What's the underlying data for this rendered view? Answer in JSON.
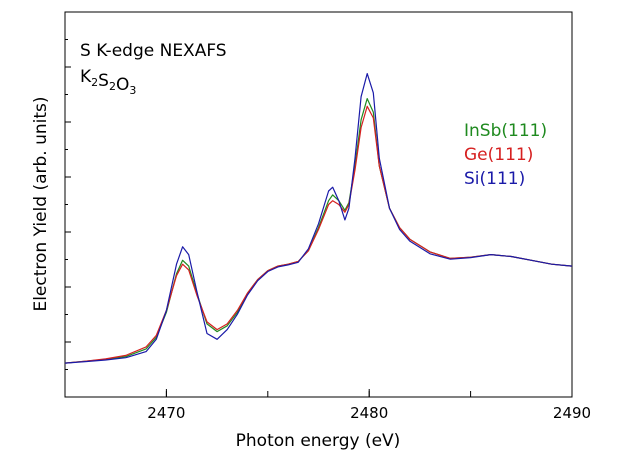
{
  "chart_data": {
    "type": "line",
    "title": "",
    "xlabel": "Photon energy (eV)",
    "ylabel": "Electron Yield (arb. units)",
    "xlim": [
      2465,
      2490
    ],
    "ylim": [
      0,
      1.0
    ],
    "y_ticks_labeled": false,
    "x_ticks": [
      2470,
      2480,
      2490
    ],
    "grid": false,
    "legend_position": "right",
    "annotation": {
      "line1": "S K-edge NEXAFS",
      "formula_parts": [
        {
          "text": "K",
          "sub": "2"
        },
        {
          "text": "S",
          "sub": "2"
        },
        {
          "text": "O",
          "sub": "3"
        }
      ]
    },
    "series": [
      {
        "name": "InSb(111)",
        "color": "#1f8a1f",
        "points": [
          [
            2465,
            0.088
          ],
          [
            2466,
            0.093
          ],
          [
            2467,
            0.098
          ],
          [
            2468,
            0.105
          ],
          [
            2469,
            0.125
          ],
          [
            2469.5,
            0.155
          ],
          [
            2470,
            0.22
          ],
          [
            2470.5,
            0.32
          ],
          [
            2470.8,
            0.355
          ],
          [
            2471.1,
            0.34
          ],
          [
            2471.5,
            0.27
          ],
          [
            2472,
            0.19
          ],
          [
            2472.5,
            0.17
          ],
          [
            2473,
            0.185
          ],
          [
            2473.5,
            0.22
          ],
          [
            2474,
            0.27
          ],
          [
            2474.5,
            0.305
          ],
          [
            2475,
            0.328
          ],
          [
            2475.5,
            0.34
          ],
          [
            2476,
            0.345
          ],
          [
            2476.5,
            0.352
          ],
          [
            2477,
            0.38
          ],
          [
            2477.5,
            0.44
          ],
          [
            2478,
            0.51
          ],
          [
            2478.2,
            0.525
          ],
          [
            2478.5,
            0.51
          ],
          [
            2478.8,
            0.485
          ],
          [
            2479,
            0.505
          ],
          [
            2479.3,
            0.6
          ],
          [
            2479.6,
            0.72
          ],
          [
            2479.9,
            0.775
          ],
          [
            2480.2,
            0.74
          ],
          [
            2480.5,
            0.6
          ],
          [
            2481,
            0.49
          ],
          [
            2481.5,
            0.44
          ],
          [
            2482,
            0.41
          ],
          [
            2483,
            0.377
          ],
          [
            2484,
            0.36
          ],
          [
            2485,
            0.363
          ],
          [
            2486,
            0.37
          ],
          [
            2487,
            0.365
          ],
          [
            2488,
            0.355
          ],
          [
            2489,
            0.345
          ],
          [
            2490,
            0.34
          ]
        ]
      },
      {
        "name": "Ge(111)",
        "color": "#d62020",
        "points": [
          [
            2465,
            0.088
          ],
          [
            2466,
            0.093
          ],
          [
            2467,
            0.099
          ],
          [
            2468,
            0.108
          ],
          [
            2469,
            0.13
          ],
          [
            2469.5,
            0.16
          ],
          [
            2470,
            0.225
          ],
          [
            2470.5,
            0.315
          ],
          [
            2470.8,
            0.345
          ],
          [
            2471.1,
            0.33
          ],
          [
            2471.5,
            0.265
          ],
          [
            2472,
            0.195
          ],
          [
            2472.5,
            0.175
          ],
          [
            2473,
            0.19
          ],
          [
            2473.5,
            0.225
          ],
          [
            2474,
            0.27
          ],
          [
            2474.5,
            0.305
          ],
          [
            2475,
            0.328
          ],
          [
            2475.5,
            0.34
          ],
          [
            2476,
            0.345
          ],
          [
            2476.5,
            0.352
          ],
          [
            2477,
            0.38
          ],
          [
            2477.5,
            0.435
          ],
          [
            2478,
            0.5
          ],
          [
            2478.2,
            0.51
          ],
          [
            2478.5,
            0.5
          ],
          [
            2478.8,
            0.48
          ],
          [
            2479,
            0.5
          ],
          [
            2479.3,
            0.59
          ],
          [
            2479.6,
            0.7
          ],
          [
            2479.9,
            0.755
          ],
          [
            2480.2,
            0.725
          ],
          [
            2480.5,
            0.6
          ],
          [
            2481,
            0.49
          ],
          [
            2481.5,
            0.44
          ],
          [
            2482,
            0.41
          ],
          [
            2483,
            0.377
          ],
          [
            2484,
            0.36
          ],
          [
            2485,
            0.363
          ],
          [
            2486,
            0.37
          ],
          [
            2487,
            0.365
          ],
          [
            2488,
            0.355
          ],
          [
            2489,
            0.345
          ],
          [
            2490,
            0.34
          ]
        ]
      },
      {
        "name": "Si(111)",
        "color": "#1a1aa8",
        "points": [
          [
            2465,
            0.088
          ],
          [
            2466,
            0.092
          ],
          [
            2467,
            0.096
          ],
          [
            2468,
            0.102
          ],
          [
            2469,
            0.118
          ],
          [
            2469.5,
            0.15
          ],
          [
            2470,
            0.225
          ],
          [
            2470.5,
            0.345
          ],
          [
            2470.8,
            0.39
          ],
          [
            2471.1,
            0.37
          ],
          [
            2471.5,
            0.275
          ],
          [
            2472,
            0.165
          ],
          [
            2472.5,
            0.15
          ],
          [
            2473,
            0.175
          ],
          [
            2473.5,
            0.215
          ],
          [
            2474,
            0.265
          ],
          [
            2474.5,
            0.302
          ],
          [
            2475,
            0.326
          ],
          [
            2475.5,
            0.338
          ],
          [
            2476,
            0.343
          ],
          [
            2476.5,
            0.35
          ],
          [
            2477,
            0.385
          ],
          [
            2477.5,
            0.45
          ],
          [
            2478,
            0.535
          ],
          [
            2478.2,
            0.545
          ],
          [
            2478.5,
            0.51
          ],
          [
            2478.8,
            0.46
          ],
          [
            2479,
            0.49
          ],
          [
            2479.3,
            0.62
          ],
          [
            2479.6,
            0.78
          ],
          [
            2479.9,
            0.84
          ],
          [
            2480.2,
            0.79
          ],
          [
            2480.5,
            0.62
          ],
          [
            2481,
            0.49
          ],
          [
            2481.5,
            0.435
          ],
          [
            2482,
            0.405
          ],
          [
            2483,
            0.372
          ],
          [
            2484,
            0.358
          ],
          [
            2485,
            0.362
          ],
          [
            2486,
            0.37
          ],
          [
            2487,
            0.365
          ],
          [
            2488,
            0.355
          ],
          [
            2489,
            0.345
          ],
          [
            2490,
            0.34
          ]
        ]
      }
    ]
  }
}
